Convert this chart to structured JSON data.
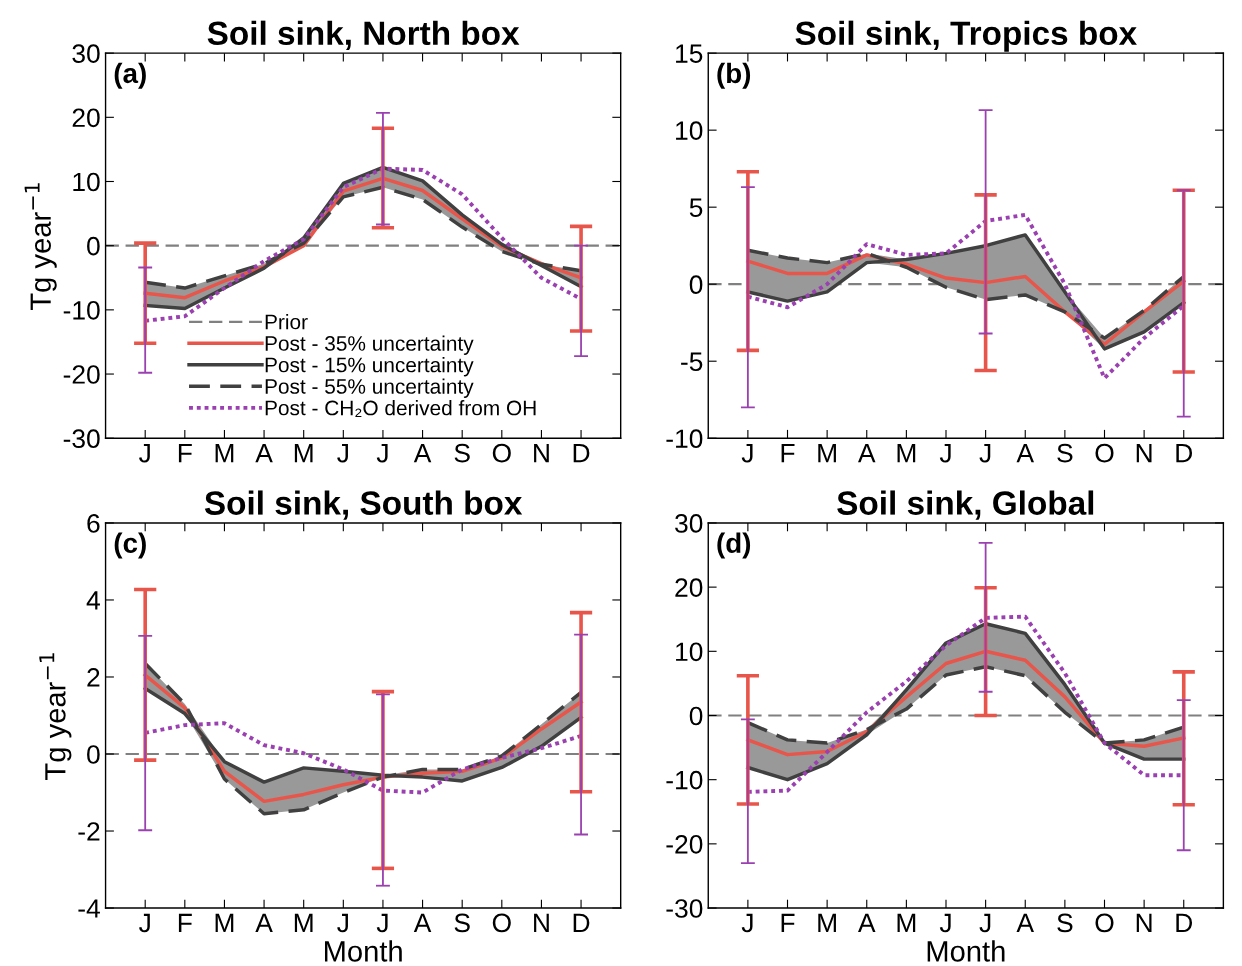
{
  "chart_data": [
    {
      "type": "line",
      "title": "Soil sink, North box",
      "ylabel": "Tg year$^{−1}$",
      "annotations": [
        "(a)"
      ],
      "categories": [
        "J",
        "F",
        "M",
        "A",
        "M",
        "J",
        "J",
        "A",
        "S",
        "O",
        "N",
        "D"
      ],
      "ylim": [
        -30,
        30
      ],
      "yticks": [
        -30,
        -20,
        -10,
        0,
        10,
        20,
        30
      ],
      "grid": false,
      "legend": "bottom",
      "tick_labels": "xy",
      "ref_lines": [
        {
          "axis": "y",
          "value": 0,
          "label": "Prior",
          "color": "#808080",
          "line_style": "dashed"
        }
      ],
      "series": [
        {
          "name": "Post - 35% uncertainty",
          "color": "#e8554a",
          "line_style": "solid",
          "values": [
            -7.4,
            -8.1,
            -5.5,
            -3.3,
            0,
            8.5,
            10.5,
            8.6,
            4.2,
            -0.1,
            -2.8,
            -5.0
          ],
          "lower": [
            -9.3,
            -9.8,
            -6.6,
            -3.5,
            0.4,
            7.6,
            9.1,
            7.2,
            2.9,
            -0.9,
            -3.1,
            -6.4
          ],
          "upper": [
            -5.7,
            -6.6,
            -4.7,
            -2.8,
            1.2,
            9.7,
            12.2,
            10.1,
            4.8,
            0.2,
            -2.9,
            -3.9
          ],
          "errors": [
            [
              -15.2,
              0.4
            ],
            null,
            null,
            null,
            null,
            null,
            [
              2.8,
              18.3
            ],
            null,
            null,
            null,
            null,
            [
              -13.3,
              3.0
            ]
          ]
        },
        {
          "name": "Post - 15% uncertainty",
          "color": "#404040",
          "line_style": "solid",
          "values": [
            -9.3,
            -9.8,
            -6.6,
            -3.5,
            1.2,
            9.7,
            12.2,
            10.1,
            4.8,
            0.2,
            -3.1,
            -6.4
          ]
        },
        {
          "name": "Post - 55% uncertainty",
          "color": "#404040",
          "line_style": "dashed",
          "values": [
            -5.7,
            -6.6,
            -4.7,
            -2.8,
            0.4,
            7.6,
            9.1,
            7.2,
            2.9,
            -0.9,
            -2.9,
            -3.9
          ]
        },
        {
          "name": "Post - CH₂O derived from OH",
          "color": "#9a40b0",
          "line_style": "dotted",
          "values": [
            -11.7,
            -11.0,
            -6.6,
            -2.4,
            1.0,
            9.1,
            12.0,
            11.8,
            8.0,
            1.2,
            -5.0,
            -8.3
          ],
          "errors": [
            [
              -19.8,
              -3.4
            ],
            null,
            null,
            null,
            null,
            null,
            [
              3.3,
              20.7
            ],
            null,
            null,
            null,
            null,
            [
              -17.2,
              0
            ]
          ]
        }
      ]
    },
    {
      "type": "line",
      "title": "Soil sink, Tropics box",
      "annotations": [
        "(b)"
      ],
      "categories": [
        "J",
        "F",
        "M",
        "A",
        "M",
        "J",
        "J",
        "A",
        "S",
        "O",
        "N",
        "D"
      ],
      "ylim": [
        -10,
        15
      ],
      "yticks": [
        -10,
        -5,
        0,
        5,
        10,
        15
      ],
      "grid": false,
      "tick_labels": "xy",
      "ref_lines": [
        {
          "axis": "y",
          "value": 0,
          "color": "#808080",
          "line_style": "dashed"
        }
      ],
      "series": [
        {
          "color": "#e8554a",
          "line_style": "solid",
          "values": [
            1.5,
            0.7,
            0.7,
            1.9,
            1.3,
            0.4,
            0.1,
            0.5,
            -1.8,
            -3.9,
            -1.8,
            0.2
          ],
          "lower": [
            -0.5,
            -1.1,
            -0.5,
            1.4,
            1.1,
            -0.2,
            -1.0,
            -0.7,
            -1.8,
            -4.2,
            -3.1,
            -1.2
          ],
          "upper": [
            2.2,
            1.7,
            1.4,
            2.0,
            1.6,
            2.0,
            2.5,
            3.2,
            -0.5,
            -3.5,
            -1.7,
            0.5
          ],
          "errors": [
            [
              -4.3,
              7.3
            ],
            null,
            null,
            null,
            null,
            null,
            [
              -5.6,
              5.8
            ],
            null,
            null,
            null,
            null,
            [
              -5.7,
              6.1
            ]
          ]
        },
        {
          "color": "#404040",
          "line_style": "solid",
          "values": [
            -0.5,
            -1.1,
            -0.5,
            1.4,
            1.6,
            2.0,
            2.5,
            3.2,
            -0.5,
            -4.2,
            -3.1,
            -1.2
          ]
        },
        {
          "color": "#404040",
          "line_style": "dashed",
          "values": [
            2.2,
            1.7,
            1.4,
            2.0,
            1.1,
            -0.2,
            -1.0,
            -0.7,
            -1.8,
            -3.5,
            -1.7,
            0.5
          ]
        },
        {
          "color": "#9a40b0",
          "line_style": "dotted",
          "values": [
            -0.8,
            -1.5,
            0,
            2.6,
            1.9,
            2.0,
            4.1,
            4.5,
            0,
            -6.1,
            -3.5,
            -1.4
          ],
          "errors": [
            [
              -8.0,
              6.3
            ],
            null,
            null,
            null,
            null,
            null,
            [
              -3.2,
              11.3
            ],
            null,
            null,
            null,
            null,
            [
              -8.6,
              6.1
            ]
          ]
        }
      ]
    },
    {
      "type": "line",
      "title": "Soil sink, South box",
      "ylabel": "Tg year$^{−1}$",
      "xlabel": "Month",
      "annotations": [
        "(c)"
      ],
      "categories": [
        "J",
        "F",
        "M",
        "A",
        "M",
        "J",
        "J",
        "A",
        "S",
        "O",
        "N",
        "D"
      ],
      "ylim": [
        -4,
        6
      ],
      "yticks": [
        -4,
        -2,
        0,
        2,
        4,
        6
      ],
      "grid": false,
      "tick_labels": "xy",
      "ref_lines": [
        {
          "axis": "y",
          "value": 0,
          "color": "#808080",
          "line_style": "dashed"
        }
      ],
      "series": [
        {
          "color": "#e8554a",
          "line_style": "solid",
          "values": [
            2.05,
            1.2,
            -0.45,
            -1.23,
            -1.05,
            -0.8,
            -0.6,
            -0.5,
            -0.45,
            -0.1,
            0.65,
            1.35
          ],
          "lower": [
            1.7,
            1.05,
            -0.65,
            -1.55,
            -1.45,
            -1.0,
            -0.6,
            -0.6,
            -0.7,
            -0.35,
            0.2,
            0.95
          ],
          "upper": [
            2.35,
            1.3,
            -0.2,
            -0.73,
            -0.36,
            -0.45,
            -0.55,
            -0.4,
            -0.4,
            -0.05,
            0.77,
            1.6
          ],
          "errors": [
            [
              -0.16,
              4.27
            ],
            null,
            null,
            null,
            null,
            null,
            [
              -2.97,
              1.62
            ],
            null,
            null,
            null,
            null,
            [
              -0.98,
              3.67
            ]
          ]
        },
        {
          "color": "#404040",
          "line_style": "solid",
          "values": [
            1.7,
            1.05,
            -0.2,
            -0.73,
            -0.36,
            -0.45,
            -0.55,
            -0.6,
            -0.7,
            -0.35,
            0.2,
            0.95
          ]
        },
        {
          "color": "#404040",
          "line_style": "dashed",
          "values": [
            2.35,
            1.3,
            -0.65,
            -1.55,
            -1.45,
            -1.0,
            -0.6,
            -0.4,
            -0.4,
            -0.05,
            0.77,
            1.6
          ]
        },
        {
          "color": "#9a40b0",
          "line_style": "dotted",
          "values": [
            0.55,
            0.75,
            0.8,
            0.23,
            0.02,
            -0.4,
            -0.95,
            -1.0,
            -0.4,
            -0.1,
            0.15,
            0.47
          ],
          "errors": [
            [
              -1.98,
              3.07
            ],
            null,
            null,
            null,
            null,
            null,
            [
              -3.42,
              1.55
            ],
            null,
            null,
            null,
            null,
            [
              -2.09,
              3.1
            ]
          ]
        }
      ]
    },
    {
      "type": "line",
      "title": "Soil sink, Global",
      "xlabel": "Month",
      "annotations": [
        "(d)"
      ],
      "categories": [
        "J",
        "F",
        "M",
        "A",
        "M",
        "J",
        "J",
        "A",
        "S",
        "O",
        "N",
        "D"
      ],
      "ylim": [
        -30,
        30
      ],
      "yticks": [
        -30,
        -20,
        -10,
        0,
        10,
        20,
        30
      ],
      "grid": false,
      "tick_labels": "xy",
      "ref_lines": [
        {
          "axis": "y",
          "value": 0,
          "color": "#808080",
          "line_style": "dashed"
        }
      ],
      "series": [
        {
          "color": "#e8554a",
          "line_style": "solid",
          "values": [
            -3.8,
            -6.1,
            -5.6,
            -2.5,
            2.9,
            8.1,
            10.0,
            8.6,
            2.9,
            -4.3,
            -4.8,
            -3.5
          ],
          "lower": [
            -8.1,
            -10.0,
            -7.5,
            -3.0,
            1.0,
            6.3,
            7.6,
            6.2,
            0.5,
            -4.3,
            -6.8,
            -6.8
          ],
          "upper": [
            -1.1,
            -3.8,
            -4.3,
            -2.2,
            4.0,
            11.3,
            14.3,
            12.8,
            4.8,
            -4.3,
            -3.8,
            -1.8
          ],
          "errors": [
            [
              -13.8,
              6.2
            ],
            null,
            null,
            null,
            null,
            null,
            [
              0,
              19.9
            ],
            null,
            null,
            null,
            null,
            [
              -13.9,
              6.8
            ]
          ]
        },
        {
          "color": "#404040",
          "line_style": "solid",
          "values": [
            -8.1,
            -10.0,
            -7.5,
            -3.0,
            4.0,
            11.3,
            14.3,
            12.8,
            4.8,
            -4.3,
            -6.8,
            -6.8
          ]
        },
        {
          "color": "#404040",
          "line_style": "dashed",
          "values": [
            -1.1,
            -3.8,
            -4.3,
            -2.2,
            1.0,
            6.3,
            7.6,
            6.2,
            0.5,
            -4.3,
            -3.8,
            -1.8
          ]
        },
        {
          "color": "#9a40b0",
          "line_style": "dotted",
          "values": [
            -11.9,
            -11.7,
            -5.7,
            0.5,
            5.3,
            10.9,
            15.2,
            15.4,
            6.6,
            -4.3,
            -9.3,
            -9.3
          ],
          "errors": [
            [
              -23.0,
              -0.6
            ],
            null,
            null,
            null,
            null,
            null,
            [
              3.7,
              26.9
            ],
            null,
            null,
            null,
            null,
            [
              -21.0,
              2.4
            ]
          ]
        }
      ]
    }
  ]
}
